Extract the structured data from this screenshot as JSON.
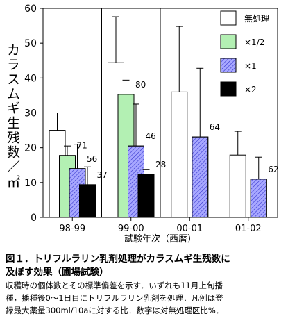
{
  "chart_data": {
    "type": "bar",
    "y_label": "カラスムギ生残数／㎡",
    "x_label": "試験年次（西暦）",
    "categories": [
      "98-99",
      "99-00",
      "00-01",
      "01-02"
    ],
    "series": [
      {
        "name": "無処理",
        "color": "#ffffff",
        "values": [
          25,
          44.4,
          36,
          17.9
        ],
        "errors": [
          5,
          13.2,
          18.8,
          6.8
        ]
      },
      {
        "name": "×1/2",
        "color": "#b3f0b3",
        "values": [
          17.8,
          35.3,
          null,
          null
        ],
        "errors": [
          2.7,
          4.1,
          null,
          null
        ],
        "percent_labels": [
          71,
          80,
          null,
          null
        ]
      },
      {
        "name": "×1",
        "color": "#a8a8ff",
        "hatch": true,
        "values": [
          14,
          20.5,
          23.1,
          11
        ],
        "errors": [
          7,
          12,
          19.7,
          6.3
        ],
        "percent_labels": [
          56,
          46,
          64,
          62
        ]
      },
      {
        "name": "×2",
        "color": "#000000",
        "values": [
          9.4,
          12.4,
          null,
          null
        ],
        "errors": [
          5.1,
          1.3,
          null,
          null
        ],
        "percent_labels": [
          37,
          28,
          null,
          null
        ]
      }
    ],
    "ylim": [
      0,
      60
    ],
    "yticks": [
      0,
      10,
      20,
      30,
      40,
      50,
      60
    ]
  },
  "caption": {
    "title": [
      "図１．トリフルラリン乳剤処理がカラスムギ生残数に",
      "及ぼす効果（圃場試験）"
    ],
    "text": [
      "収穫時の個体数とその標準偏差を示す．いずれも11月上旬播",
      "種，播種後0～1日目にトリフルラリン乳剤を処理．凡例は登",
      "録最大薬量300ml/10aに対する比．数字は対無処理区比%．"
    ]
  }
}
